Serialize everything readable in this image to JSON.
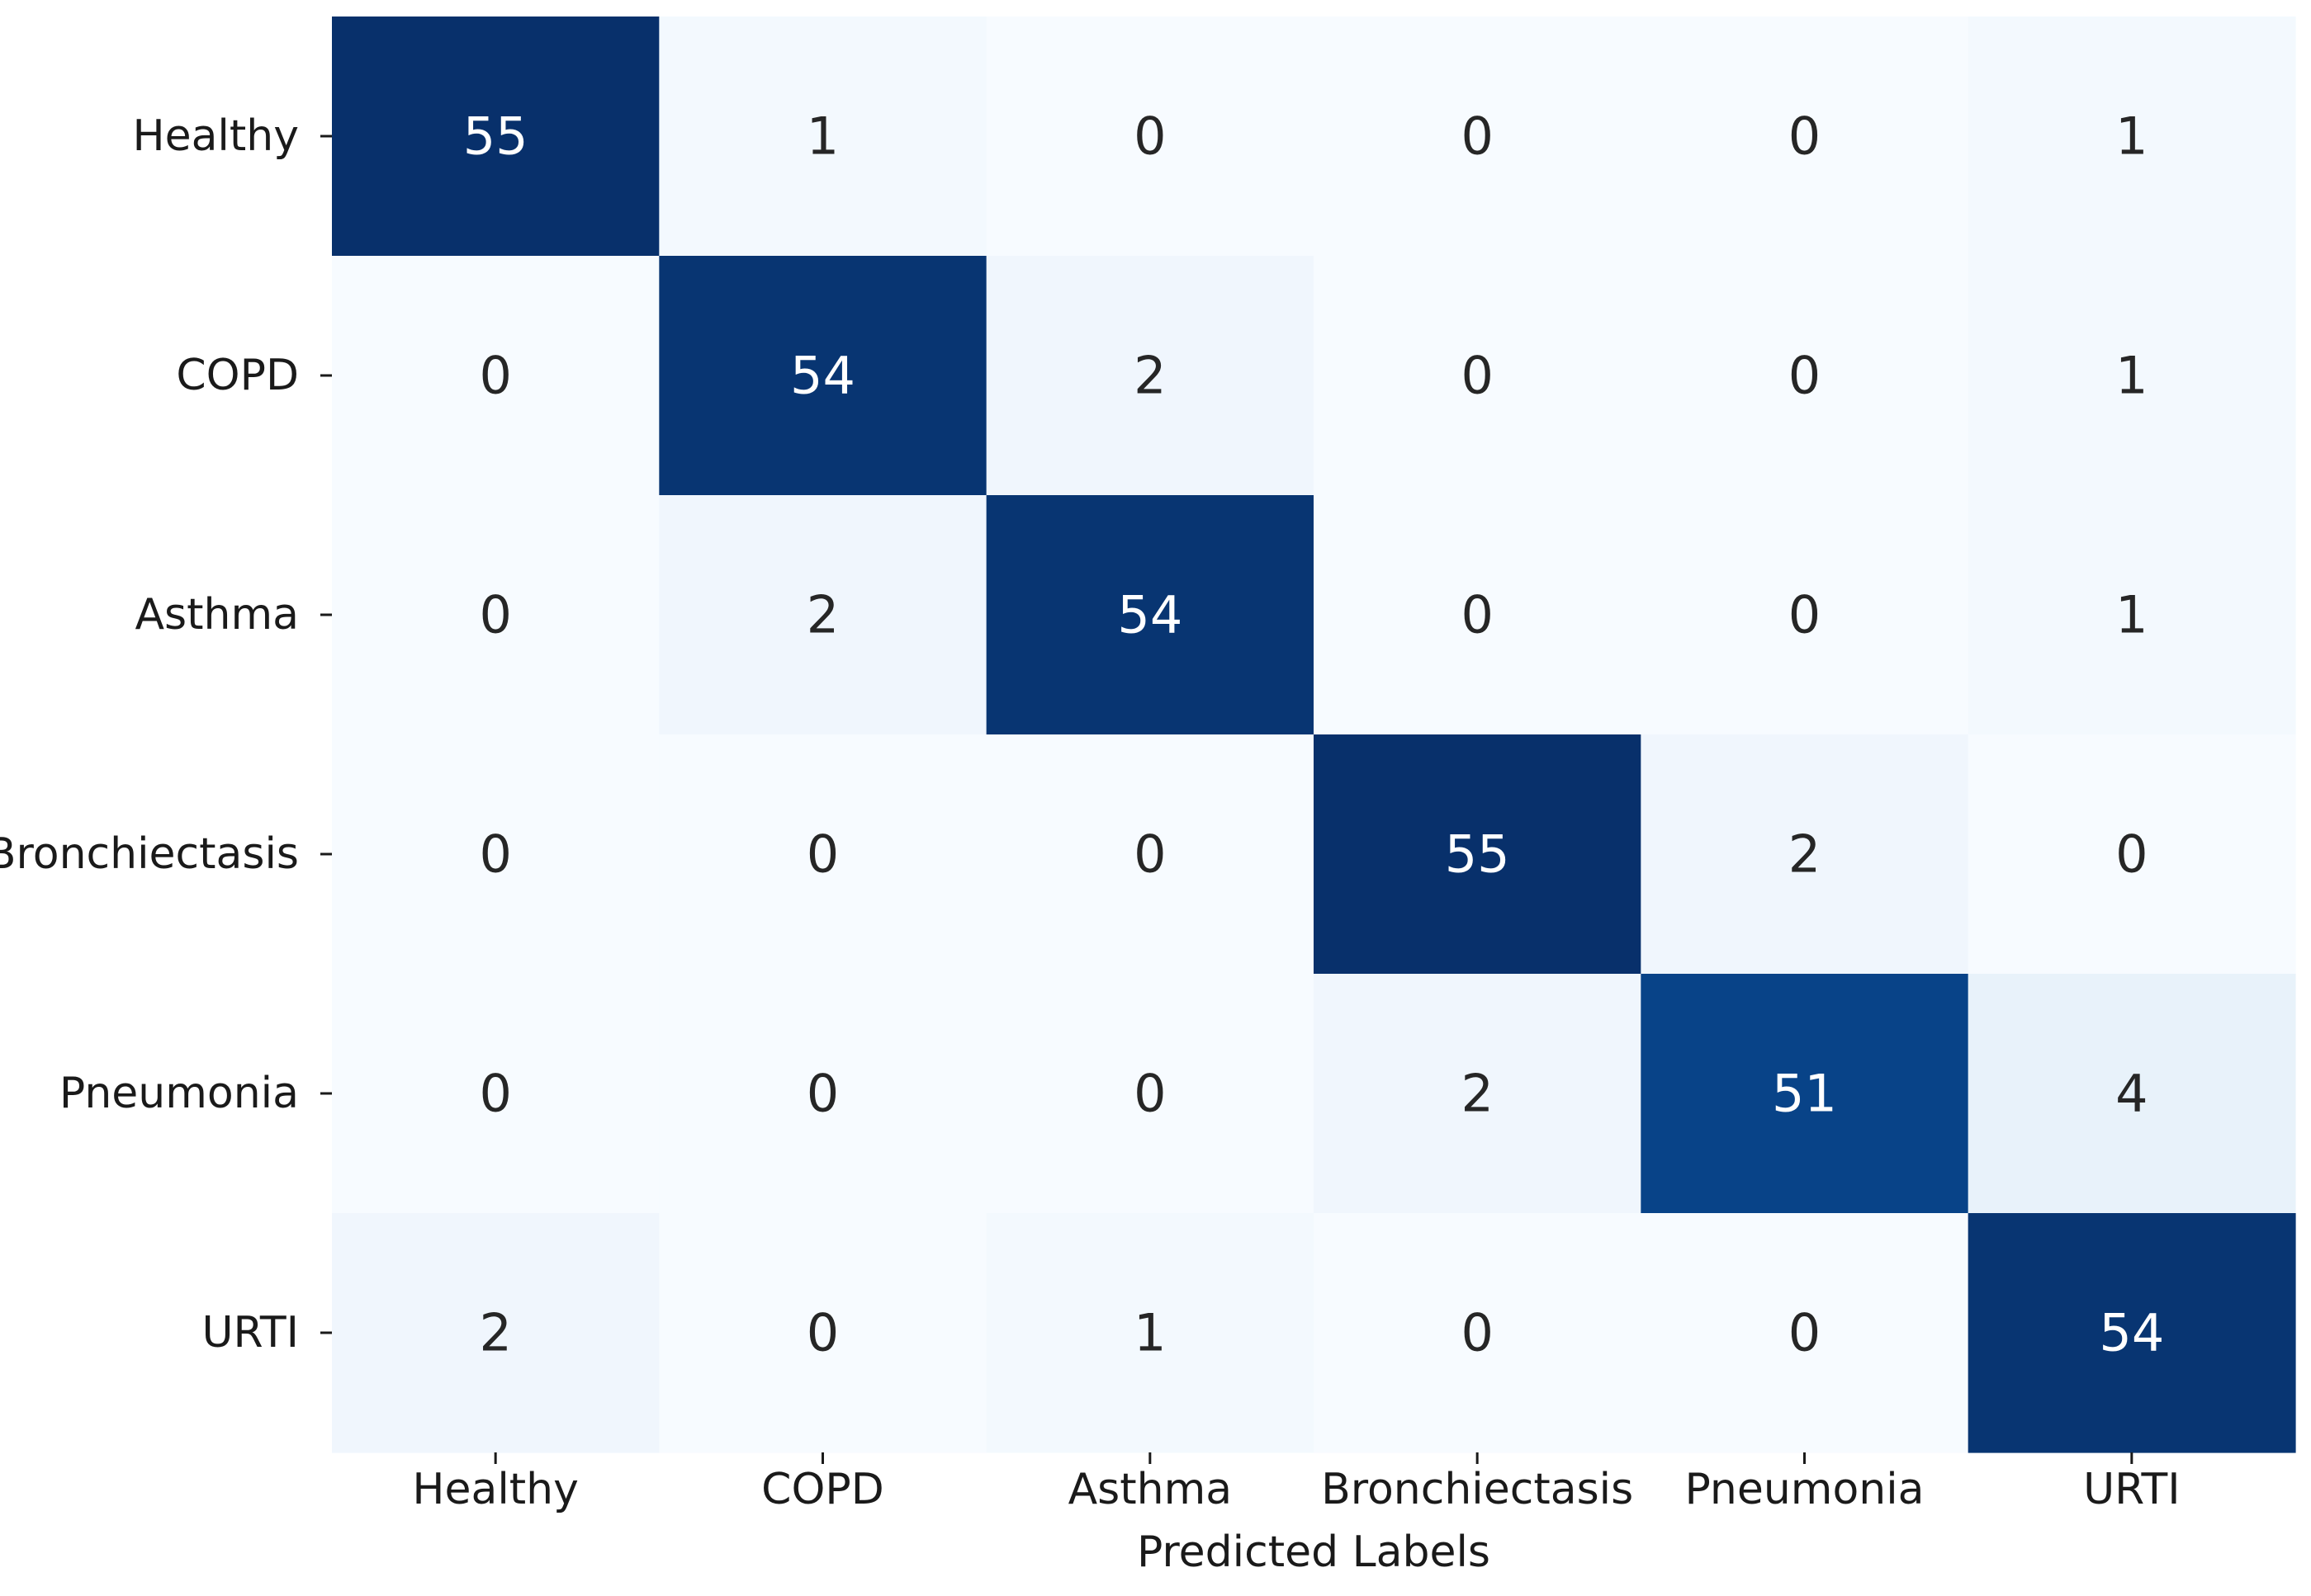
{
  "chart_data": {
    "type": "heatmap",
    "title": "",
    "xlabel": "Predicted Labels",
    "ylabel": "",
    "x_categories": [
      "Healthy",
      "COPD",
      "Asthma",
      "Bronchiectasis",
      "Pneumonia",
      "URTI"
    ],
    "y_categories": [
      "Healthy",
      "COPD",
      "Asthma",
      "Bronchiectasis",
      "Pneumonia",
      "URTI"
    ],
    "values": [
      [
        55,
        1,
        0,
        0,
        0,
        1
      ],
      [
        0,
        54,
        2,
        0,
        0,
        1
      ],
      [
        0,
        2,
        54,
        0,
        0,
        1
      ],
      [
        0,
        0,
        0,
        55,
        2,
        0
      ],
      [
        0,
        0,
        0,
        2,
        51,
        4
      ],
      [
        2,
        0,
        1,
        0,
        0,
        54
      ]
    ],
    "vmin": 0,
    "vmax": 55,
    "colormap": "Blues",
    "colorbar": false,
    "annotations": true
  }
}
